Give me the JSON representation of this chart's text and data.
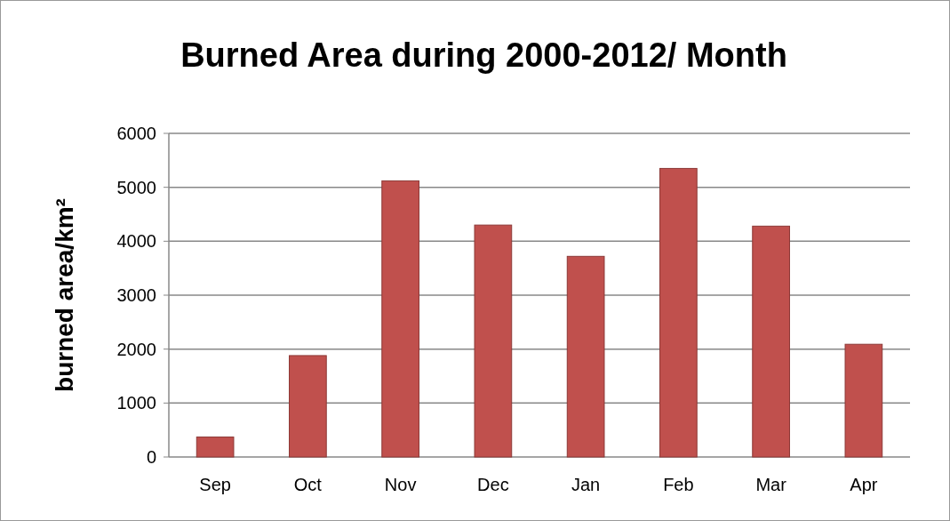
{
  "chart_data": {
    "type": "bar",
    "title": "Burned Area during 2000-2012/ Month",
    "ylabel": "burned area/km²",
    "categories": [
      "Sep",
      "Oct",
      "Nov",
      "Dec",
      "Jan",
      "Feb",
      "Mar",
      "Apr"
    ],
    "values": [
      370,
      1880,
      5120,
      4300,
      3720,
      5350,
      4280,
      2090
    ],
    "color": "#c0504d",
    "ylim": [
      0,
      6000
    ],
    "yticks": [
      0,
      1000,
      2000,
      3000,
      4000,
      5000,
      6000
    ],
    "grid": "y"
  }
}
